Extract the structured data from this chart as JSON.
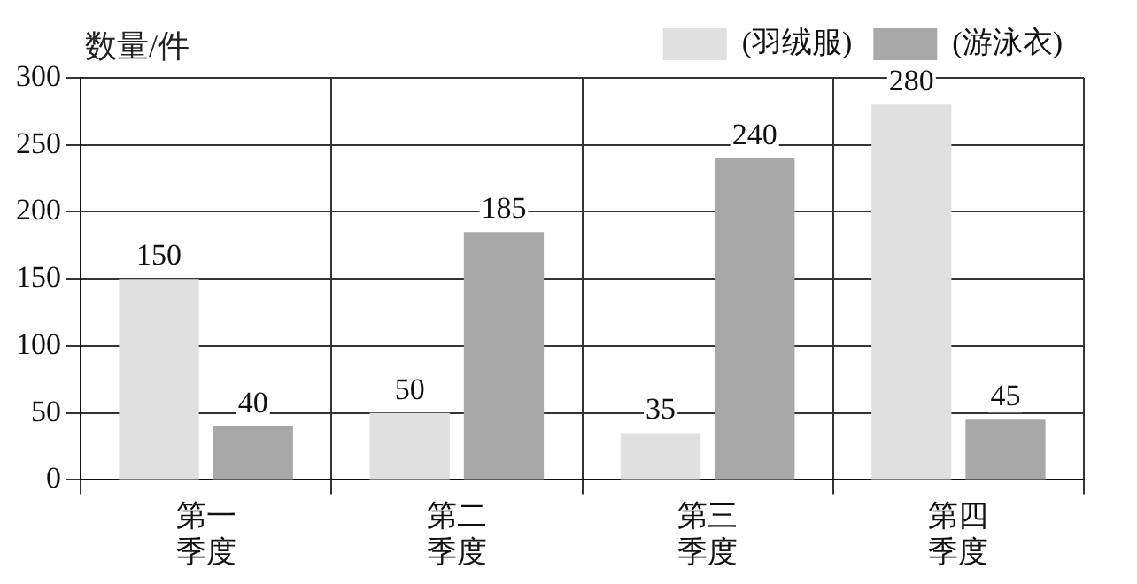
{
  "chart_data": {
    "type": "bar",
    "ylabel": "数量/件",
    "categories": [
      "第一季度",
      "第二季度",
      "第三季度",
      "第四季度"
    ],
    "series": [
      {
        "name": "(羽绒服)",
        "color": "#e0e0e0",
        "values": [
          150,
          50,
          35,
          280
        ]
      },
      {
        "name": "(游泳衣)",
        "color": "#a8a8a8",
        "values": [
          40,
          185,
          240,
          45
        ]
      }
    ],
    "ylim": [
      0,
      300
    ],
    "yticks": [
      0,
      50,
      100,
      150,
      200,
      250,
      300
    ],
    "grid": true,
    "legend": "top right",
    "data_labels": true
  }
}
